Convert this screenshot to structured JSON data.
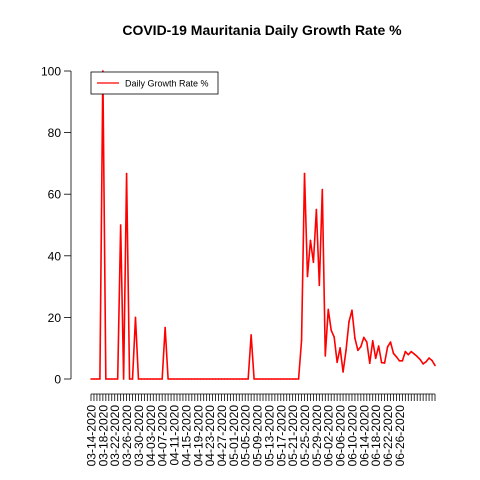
{
  "chart_data": {
    "type": "line",
    "title": "COVID-19 Mauritania Daily Growth Rate %",
    "xlabel": "",
    "ylabel": "",
    "ylim": [
      0,
      100
    ],
    "yticks": [
      0,
      20,
      40,
      60,
      80,
      100
    ],
    "x_start": "03-14-2020",
    "x_end": "06-26-2020",
    "x_tick_labels": [
      "03-14-2020",
      "03-18-2020",
      "03-22-2020",
      "03-26-2020",
      "03-30-2020",
      "04-03-2020",
      "04-07-2020",
      "04-11-2020",
      "04-15-2020",
      "04-19-2020",
      "04-23-2020",
      "04-27-2020",
      "05-01-2020",
      "05-05-2020",
      "05-09-2020",
      "05-13-2020",
      "05-17-2020",
      "05-21-2020",
      "05-25-2020",
      "05-29-2020",
      "06-02-2020",
      "06-06-2020",
      "06-10-2020",
      "06-14-2020",
      "06-18-2020",
      "06-22-2020",
      "06-26-2020"
    ],
    "legend": {
      "position": "top-left",
      "entries": [
        {
          "label": "Daily Growth Rate %",
          "color": "#ff0000"
        }
      ]
    },
    "series": [
      {
        "name": "Daily Growth Rate %",
        "color": "#ff0000",
        "values": [
          0,
          0,
          0,
          0,
          100,
          0,
          0,
          0,
          0,
          0,
          50,
          0,
          66.7,
          0,
          0,
          20,
          0,
          0,
          0,
          0,
          0,
          0,
          0,
          0,
          0,
          16.7,
          0,
          0,
          0,
          0,
          0,
          0,
          0,
          0,
          0,
          0,
          0,
          0,
          0,
          0,
          0,
          0,
          0,
          0,
          0,
          0,
          0,
          0,
          0,
          0,
          0,
          0,
          0,
          0,
          14.3,
          0,
          0,
          0,
          0,
          0,
          0,
          0,
          0,
          0,
          0,
          0,
          0,
          0,
          0,
          0,
          0,
          12.5,
          66.7,
          33.3,
          45,
          37.9,
          55,
          30.4,
          61.5,
          7.5,
          22.6,
          15.8,
          13.6,
          5.4,
          10.1,
          2.3,
          9.3,
          18.6,
          22.3,
          13.2,
          9.3,
          10.5,
          13.5,
          12,
          5.1,
          12.4,
          6.7,
          10.7,
          5.3,
          5.2,
          10.4,
          12,
          8.3,
          7.2,
          5.9,
          5.9,
          8.9,
          7.9,
          8.9,
          8.1,
          7.3,
          6.3,
          4.9,
          5.6,
          6.8,
          6,
          4.4
        ]
      }
    ]
  }
}
